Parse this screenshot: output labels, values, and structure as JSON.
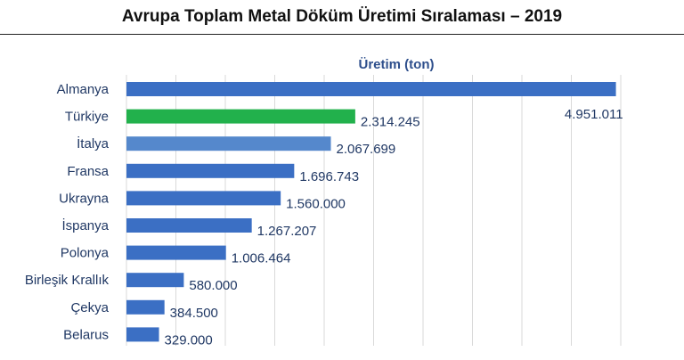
{
  "chart_data": {
    "type": "bar",
    "orientation": "horizontal",
    "title": "Avrupa Toplam Metal Döküm Üretimi Sıralaması – 2019",
    "series_label": "Üretim (ton)",
    "categories": [
      "Almanya",
      "Türkiye",
      "İtalya",
      "Fransa",
      "Ukrayna",
      "İspanya",
      "Polonya",
      "Birleşik Krallık",
      "Çekya",
      "Belarus"
    ],
    "values": [
      4951011,
      2314245,
      2067699,
      1696743,
      1560000,
      1267207,
      1006464,
      580000,
      384500,
      329000
    ],
    "value_labels": [
      "4.951.011",
      "2.314.245",
      "2.067.699",
      "1.696.743",
      "1.560.000",
      "1.267.207",
      "1.006.464",
      "580.000",
      "384.500",
      "329.000"
    ],
    "colors": [
      "#3b6fc4",
      "#22b14c",
      "#5588cc",
      "#3b6fc4",
      "#3b6fc4",
      "#3b6fc4",
      "#3b6fc4",
      "#3b6fc4",
      "#3b6fc4",
      "#3b6fc4"
    ],
    "xlim": [
      0,
      5000000
    ],
    "grid": true
  }
}
